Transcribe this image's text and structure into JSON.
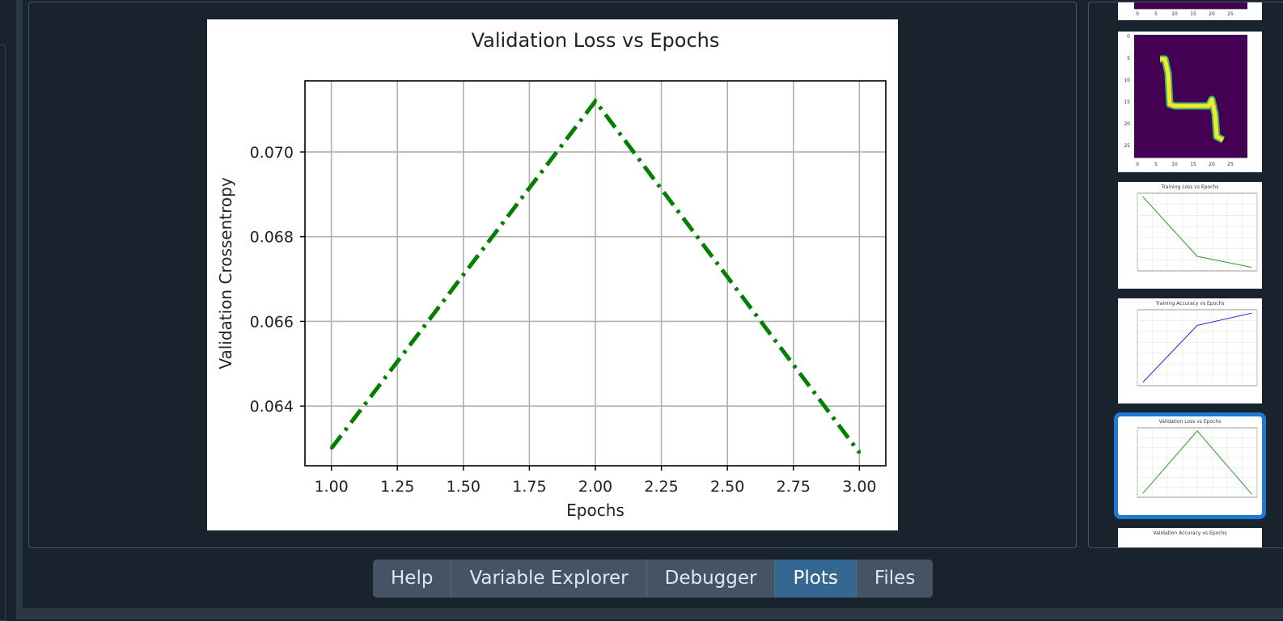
{
  "tabs": [
    {
      "label": "Help",
      "active": false
    },
    {
      "label": "Variable Explorer",
      "active": false
    },
    {
      "label": "Debugger",
      "active": false
    },
    {
      "label": "Plots",
      "active": true
    },
    {
      "label": "Files",
      "active": false
    }
  ],
  "colors": {
    "background": "#19232d",
    "pane_border": "#455364",
    "tab": "#455364",
    "tab_active": "#346792",
    "selection": "#1f78d1",
    "series": "#007f00"
  },
  "chart_data": {
    "type": "line",
    "title": "Validation Loss vs Epochs",
    "xlabel": "Epochs",
    "ylabel": "Validation Crossentropy",
    "x": [
      1,
      2,
      3
    ],
    "series": [
      {
        "values": [
          0.063,
          0.0712,
          0.0629
        ],
        "color": "#007f00",
        "linestyle": "dash-dot"
      }
    ],
    "xlim": [
      0.9,
      3.1
    ],
    "ylim": [
      0.06259,
      0.07168
    ],
    "xticks": [
      "1.00",
      "1.25",
      "1.50",
      "1.75",
      "2.00",
      "2.25",
      "2.50",
      "2.75",
      "3.00"
    ],
    "yticks": [
      "0.064",
      "0.066",
      "0.068",
      "0.070"
    ],
    "grid": true
  },
  "thumbnails": {
    "digit_ticks": [
      "0",
      "5",
      "10",
      "15",
      "20",
      "25"
    ],
    "training_loss": {
      "title": "Training Loss vs Epochs",
      "x": [
        1,
        2,
        3
      ],
      "values": [
        0.0145,
        0.0118,
        0.0113
      ],
      "color": "#2a9d2a"
    },
    "training_accuracy": {
      "title": "Training Accuracy vs Epochs",
      "x": [
        1,
        2,
        3
      ],
      "values": [
        0.9952,
        0.9966,
        0.9969
      ],
      "color": "#2b2bd9"
    },
    "validation_loss": {
      "title": "Validation Loss vs Epochs",
      "x": [
        1,
        2,
        3
      ],
      "values": [
        0.063,
        0.0712,
        0.0629
      ],
      "color": "#2a9d2a"
    },
    "validation_accuracy": {
      "title": "Validation Accuracy vs Epochs"
    }
  }
}
